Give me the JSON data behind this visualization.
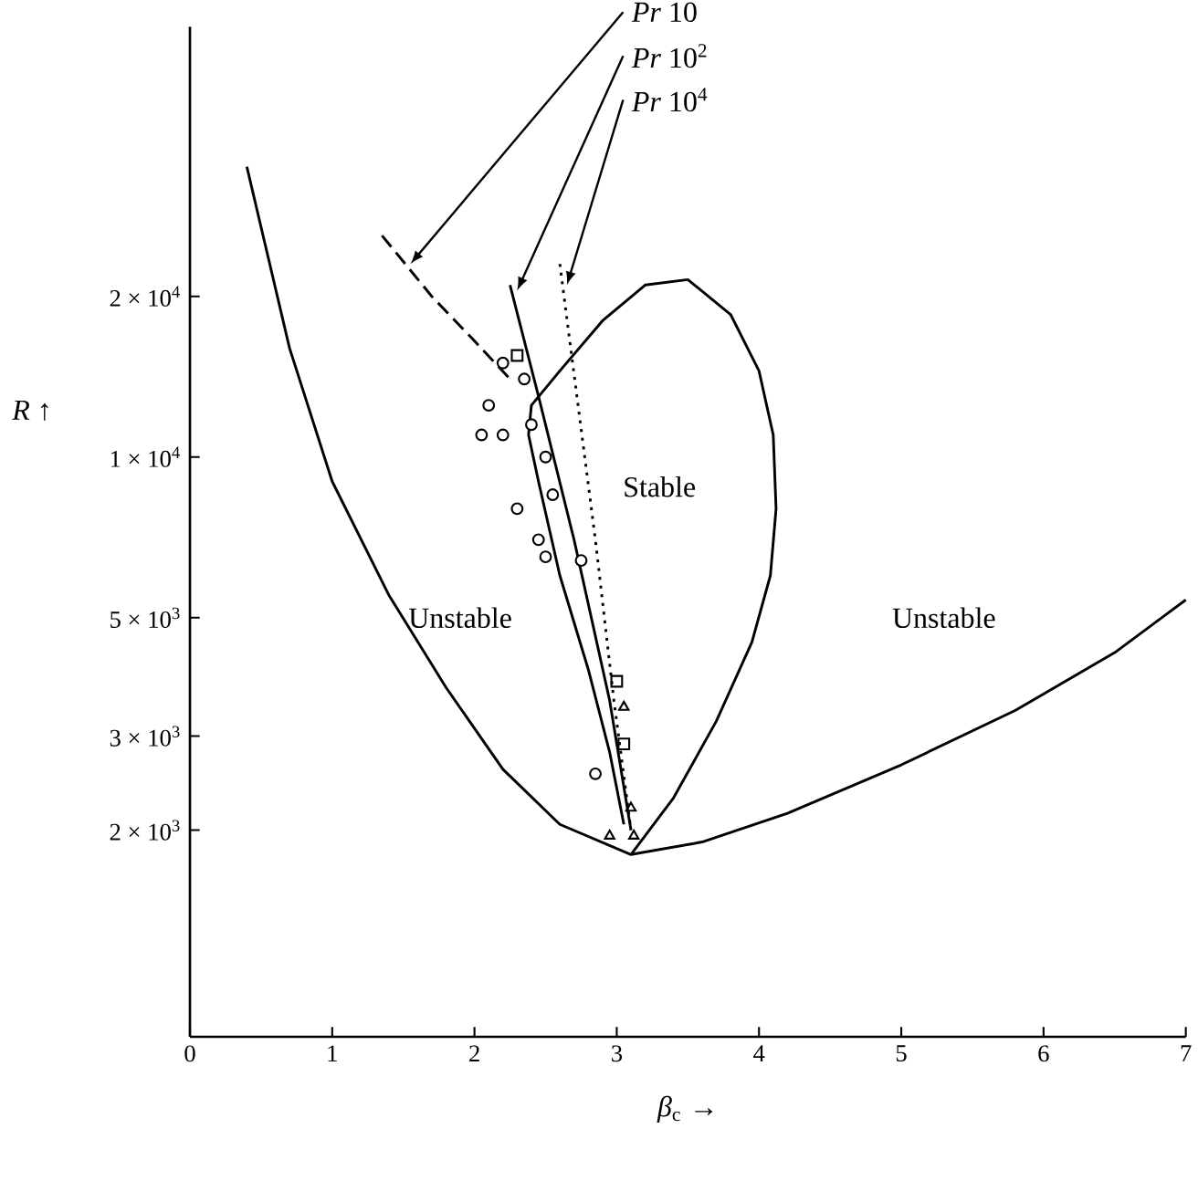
{
  "chart_data": {
    "type": "line",
    "xlabel": "*β*$_{c}$ →",
    "ylabel": "*R* ↑",
    "xlim": [
      0,
      7
    ],
    "xticks": [
      0,
      1,
      2,
      3,
      4,
      5,
      6,
      7
    ],
    "ylim": [
      820,
      64000
    ],
    "log": "y",
    "yticks": [
      {
        "value": 2000,
        "label": "2 × 10$^{3}$"
      },
      {
        "value": 3000,
        "label": "3 × 10$^{3}$"
      },
      {
        "value": 5000,
        "label": "5 × 10$^{3}$"
      },
      {
        "value": 10000,
        "label": "1 × 10$^{4}$"
      },
      {
        "value": 20000,
        "label": "2 × 10$^{4}$"
      }
    ],
    "series": [
      {
        "line_style": "solid",
        "color": "#000000",
        "x": [
          0.4,
          0.7,
          1.0,
          1.4,
          1.8,
          2.2,
          2.6,
          3.1,
          3.6,
          4.2,
          5.0,
          5.8,
          6.5,
          7.0
        ],
        "values": [
          35000,
          16000,
          9000,
          5500,
          3700,
          2600,
          2050,
          1800,
          1900,
          2150,
          2650,
          3350,
          4300,
          5400
        ]
      },
      {
        "line_style": "solid",
        "color": "#000000",
        "x": [
          3.1,
          3.4,
          3.7,
          3.95,
          4.08,
          4.12,
          4.1,
          4.0,
          3.8,
          3.5,
          3.2,
          2.9,
          2.6,
          2.4,
          2.38,
          2.45,
          2.6,
          2.8,
          2.95,
          3.05
        ],
        "values": [
          1800,
          2300,
          3200,
          4500,
          6000,
          8000,
          11000,
          14500,
          18500,
          21500,
          21000,
          18000,
          14500,
          12500,
          11000,
          9000,
          6000,
          4000,
          2800,
          2050
        ]
      },
      {
        "line_style": "dashed",
        "color": "#000000",
        "x": [
          1.35,
          1.7,
          2.0,
          2.25
        ],
        "values": [
          26000,
          20000,
          16500,
          14000
        ]
      },
      {
        "line_style": "solid",
        "color": "#000000",
        "x": [
          2.25,
          2.45,
          2.7,
          2.95,
          3.1
        ],
        "values": [
          21000,
          13000,
          7000,
          3500,
          2000
        ]
      },
      {
        "line_style": "dotted",
        "color": "#000000",
        "x": [
          2.6,
          2.72,
          2.85,
          2.98,
          3.1
        ],
        "values": [
          23000,
          13000,
          7000,
          3500,
          2000
        ]
      },
      {
        "type": "scatter",
        "marker": "circle",
        "color": "#000000",
        "x": [
          2.05,
          2.2,
          2.35,
          2.4,
          2.5,
          2.55,
          2.75,
          2.85,
          2.1,
          2.2,
          2.3,
          2.45,
          2.5
        ],
        "values": [
          11000,
          15000,
          14000,
          11500,
          10000,
          8500,
          6400,
          2550,
          12500,
          11000,
          8000,
          7000,
          6500
        ]
      },
      {
        "type": "scatter",
        "marker": "square",
        "color": "#000000",
        "x": [
          2.3,
          3.0,
          3.05
        ],
        "values": [
          15500,
          3800,
          2900
        ]
      },
      {
        "type": "scatter",
        "marker": "triangle",
        "color": "#000000",
        "x": [
          3.1,
          2.95,
          3.12,
          3.05
        ],
        "values": [
          2200,
          1950,
          1950,
          3400
        ]
      }
    ],
    "annotations": [
      {
        "text": "*Pr* 10",
        "x": 1.55,
        "y": 23000
      },
      {
        "text": "*Pr* 10$^{2}$",
        "x": 2.3,
        "y": 20500
      },
      {
        "text": "*Pr* 10$^{4}$",
        "x": 2.65,
        "y": 21000
      },
      "Stable",
      "Unstable",
      "Unstable"
    ]
  }
}
